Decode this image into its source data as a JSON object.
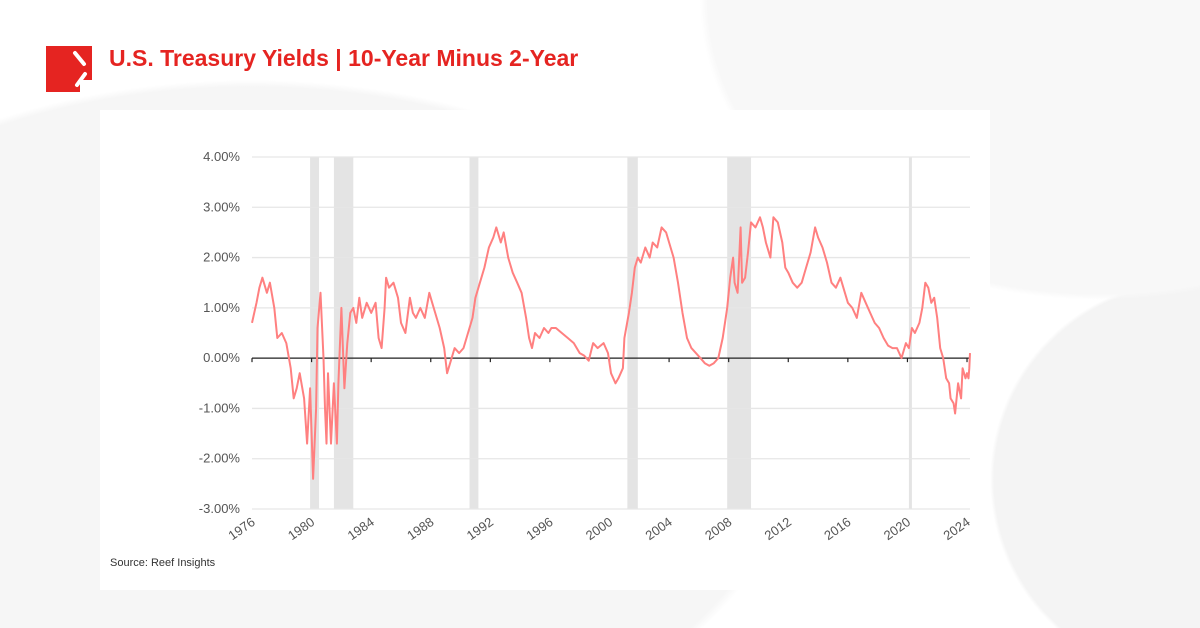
{
  "header": {
    "title": "U.S. Treasury Yields | 10-Year Minus 2-Year",
    "logo_icon": "reef-logo-icon"
  },
  "footer": {
    "source": "Source: Reef Insights"
  },
  "colors": {
    "brand": "#e52421",
    "series": "#ff8080",
    "recession": "#e4e4e4",
    "grid": "#e6e6e6"
  },
  "chart_data": {
    "type": "line",
    "title": "",
    "xlabel": "",
    "ylabel": "",
    "xlim": [
      1976,
      2024.2
    ],
    "ylim": [
      -3,
      4
    ],
    "grid": true,
    "legend": "none",
    "x_ticks": [
      "1976",
      "1980",
      "1984",
      "1988",
      "1992",
      "1996",
      "2000",
      "2004",
      "2008",
      "2012",
      "2016",
      "2020",
      "2024"
    ],
    "y_ticks": [
      "-3.00%",
      "-2.00%",
      "-1.00%",
      "0.00%",
      "1.00%",
      "2.00%",
      "3.00%",
      "4.00%"
    ],
    "shaded_periods": [
      [
        1979.9,
        1980.5
      ],
      [
        1981.5,
        1982.8
      ],
      [
        1990.6,
        1991.2
      ],
      [
        2001.2,
        2001.9
      ],
      [
        2007.9,
        2009.5
      ],
      [
        2020.1,
        2020.3
      ]
    ],
    "series": [
      {
        "points": [
          [
            1976.0,
            0.7
          ],
          [
            1976.3,
            1.1
          ],
          [
            1976.5,
            1.4
          ],
          [
            1976.7,
            1.6
          ],
          [
            1977.0,
            1.3
          ],
          [
            1977.2,
            1.5
          ],
          [
            1977.5,
            1.0
          ],
          [
            1977.7,
            0.4
          ],
          [
            1978.0,
            0.5
          ],
          [
            1978.3,
            0.3
          ],
          [
            1978.6,
            -0.2
          ],
          [
            1978.8,
            -0.8
          ],
          [
            1979.0,
            -0.6
          ],
          [
            1979.2,
            -0.3
          ],
          [
            1979.5,
            -0.8
          ],
          [
            1979.7,
            -1.7
          ],
          [
            1979.9,
            -0.6
          ],
          [
            1980.1,
            -2.4
          ],
          [
            1980.3,
            -1.0
          ],
          [
            1980.4,
            0.6
          ],
          [
            1980.6,
            1.3
          ],
          [
            1980.8,
            0.0
          ],
          [
            1980.9,
            -1.0
          ],
          [
            1981.0,
            -1.7
          ],
          [
            1981.1,
            -0.3
          ],
          [
            1981.3,
            -1.7
          ],
          [
            1981.5,
            -0.5
          ],
          [
            1981.7,
            -1.7
          ],
          [
            1981.8,
            -0.5
          ],
          [
            1982.0,
            1.0
          ],
          [
            1982.2,
            -0.6
          ],
          [
            1982.4,
            0.3
          ],
          [
            1982.6,
            0.9
          ],
          [
            1982.8,
            1.0
          ],
          [
            1983.0,
            0.7
          ],
          [
            1983.2,
            1.2
          ],
          [
            1983.4,
            0.8
          ],
          [
            1983.7,
            1.1
          ],
          [
            1984.0,
            0.9
          ],
          [
            1984.3,
            1.1
          ],
          [
            1984.5,
            0.4
          ],
          [
            1984.7,
            0.2
          ],
          [
            1984.9,
            1.0
          ],
          [
            1985.0,
            1.6
          ],
          [
            1985.2,
            1.4
          ],
          [
            1985.5,
            1.5
          ],
          [
            1985.8,
            1.2
          ],
          [
            1986.0,
            0.7
          ],
          [
            1986.3,
            0.5
          ],
          [
            1986.6,
            1.2
          ],
          [
            1986.8,
            0.9
          ],
          [
            1987.0,
            0.8
          ],
          [
            1987.3,
            1.0
          ],
          [
            1987.6,
            0.8
          ],
          [
            1987.9,
            1.3
          ],
          [
            1988.1,
            1.1
          ],
          [
            1988.3,
            0.9
          ],
          [
            1988.6,
            0.6
          ],
          [
            1988.9,
            0.2
          ],
          [
            1989.1,
            -0.3
          ],
          [
            1989.3,
            -0.1
          ],
          [
            1989.6,
            0.2
          ],
          [
            1989.9,
            0.1
          ],
          [
            1990.2,
            0.2
          ],
          [
            1990.5,
            0.5
          ],
          [
            1990.8,
            0.8
          ],
          [
            1991.0,
            1.2
          ],
          [
            1991.3,
            1.5
          ],
          [
            1991.6,
            1.8
          ],
          [
            1991.9,
            2.2
          ],
          [
            1992.2,
            2.4
          ],
          [
            1992.4,
            2.6
          ],
          [
            1992.7,
            2.3
          ],
          [
            1992.9,
            2.5
          ],
          [
            1993.2,
            2.0
          ],
          [
            1993.5,
            1.7
          ],
          [
            1993.8,
            1.5
          ],
          [
            1994.1,
            1.3
          ],
          [
            1994.4,
            0.8
          ],
          [
            1994.6,
            0.4
          ],
          [
            1994.8,
            0.2
          ],
          [
            1995.0,
            0.5
          ],
          [
            1995.3,
            0.4
          ],
          [
            1995.6,
            0.6
          ],
          [
            1995.9,
            0.5
          ],
          [
            1996.1,
            0.6
          ],
          [
            1996.4,
            0.6
          ],
          [
            1996.8,
            0.5
          ],
          [
            1997.2,
            0.4
          ],
          [
            1997.6,
            0.3
          ],
          [
            1998.0,
            0.1
          ],
          [
            1998.3,
            0.05
          ],
          [
            1998.6,
            -0.05
          ],
          [
            1998.9,
            0.3
          ],
          [
            1999.2,
            0.2
          ],
          [
            1999.6,
            0.3
          ],
          [
            1999.9,
            0.1
          ],
          [
            2000.1,
            -0.3
          ],
          [
            2000.4,
            -0.5
          ],
          [
            2000.6,
            -0.4
          ],
          [
            2000.9,
            -0.2
          ],
          [
            2001.0,
            0.4
          ],
          [
            2001.3,
            0.9
          ],
          [
            2001.5,
            1.3
          ],
          [
            2001.7,
            1.8
          ],
          [
            2001.9,
            2.0
          ],
          [
            2002.1,
            1.9
          ],
          [
            2002.4,
            2.2
          ],
          [
            2002.7,
            2.0
          ],
          [
            2002.9,
            2.3
          ],
          [
            2003.2,
            2.2
          ],
          [
            2003.5,
            2.6
          ],
          [
            2003.8,
            2.5
          ],
          [
            2004.0,
            2.3
          ],
          [
            2004.3,
            2.0
          ],
          [
            2004.6,
            1.5
          ],
          [
            2004.9,
            0.9
          ],
          [
            2005.2,
            0.4
          ],
          [
            2005.5,
            0.2
          ],
          [
            2005.8,
            0.1
          ],
          [
            2006.1,
            0.0
          ],
          [
            2006.4,
            -0.1
          ],
          [
            2006.7,
            -0.15
          ],
          [
            2007.0,
            -0.1
          ],
          [
            2007.3,
            0.0
          ],
          [
            2007.6,
            0.4
          ],
          [
            2007.9,
            1.0
          ],
          [
            2008.1,
            1.6
          ],
          [
            2008.3,
            2.0
          ],
          [
            2008.4,
            1.5
          ],
          [
            2008.6,
            1.3
          ],
          [
            2008.8,
            2.6
          ],
          [
            2008.9,
            1.5
          ],
          [
            2009.1,
            1.6
          ],
          [
            2009.3,
            2.1
          ],
          [
            2009.5,
            2.7
          ],
          [
            2009.8,
            2.6
          ],
          [
            2010.1,
            2.8
          ],
          [
            2010.3,
            2.6
          ],
          [
            2010.5,
            2.3
          ],
          [
            2010.8,
            2.0
          ],
          [
            2011.0,
            2.8
          ],
          [
            2011.3,
            2.7
          ],
          [
            2011.6,
            2.3
          ],
          [
            2011.8,
            1.8
          ],
          [
            2012.0,
            1.7
          ],
          [
            2012.3,
            1.5
          ],
          [
            2012.6,
            1.4
          ],
          [
            2012.9,
            1.5
          ],
          [
            2013.2,
            1.8
          ],
          [
            2013.5,
            2.1
          ],
          [
            2013.8,
            2.6
          ],
          [
            2014.0,
            2.4
          ],
          [
            2014.3,
            2.2
          ],
          [
            2014.6,
            1.9
          ],
          [
            2014.9,
            1.5
          ],
          [
            2015.2,
            1.4
          ],
          [
            2015.5,
            1.6
          ],
          [
            2015.8,
            1.3
          ],
          [
            2016.0,
            1.1
          ],
          [
            2016.3,
            1.0
          ],
          [
            2016.6,
            0.8
          ],
          [
            2016.9,
            1.3
          ],
          [
            2017.2,
            1.1
          ],
          [
            2017.5,
            0.9
          ],
          [
            2017.8,
            0.7
          ],
          [
            2018.1,
            0.6
          ],
          [
            2018.4,
            0.4
          ],
          [
            2018.7,
            0.25
          ],
          [
            2019.0,
            0.2
          ],
          [
            2019.3,
            0.2
          ],
          [
            2019.6,
            0.0
          ],
          [
            2019.9,
            0.3
          ],
          [
            2020.1,
            0.2
          ],
          [
            2020.3,
            0.6
          ],
          [
            2020.5,
            0.5
          ],
          [
            2020.8,
            0.7
          ],
          [
            2021.0,
            1.0
          ],
          [
            2021.2,
            1.5
          ],
          [
            2021.4,
            1.4
          ],
          [
            2021.6,
            1.1
          ],
          [
            2021.8,
            1.2
          ],
          [
            2022.0,
            0.8
          ],
          [
            2022.2,
            0.2
          ],
          [
            2022.4,
            0.0
          ],
          [
            2022.6,
            -0.4
          ],
          [
            2022.8,
            -0.5
          ],
          [
            2022.9,
            -0.8
          ],
          [
            2023.1,
            -0.9
          ],
          [
            2023.2,
            -1.1
          ],
          [
            2023.4,
            -0.5
          ],
          [
            2023.6,
            -0.8
          ],
          [
            2023.7,
            -0.2
          ],
          [
            2023.9,
            -0.4
          ],
          [
            2024.0,
            -0.3
          ],
          [
            2024.1,
            -0.4
          ],
          [
            2024.15,
            -0.2
          ],
          [
            2024.2,
            0.1
          ]
        ]
      }
    ]
  }
}
